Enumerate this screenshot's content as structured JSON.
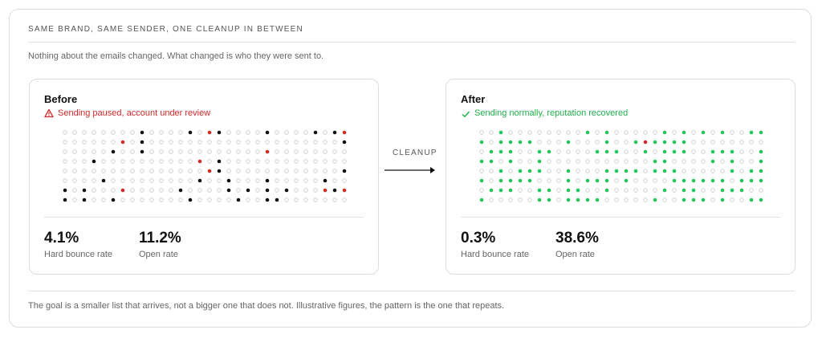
{
  "header": {
    "title": "SAME BRAND, SAME SENDER, ONE CLEANUP IN BETWEEN",
    "subtitle": "Nothing about the emails changed. What changed is who they were sent to."
  },
  "panels": [
    {
      "title": "Before",
      "status": "Sending paused, account under review",
      "metrics": [
        {
          "value": "4.1%",
          "label": "Hard bounce rate"
        },
        {
          "value": "11.2%",
          "label": "Open rate"
        }
      ]
    },
    {
      "title": "After",
      "status": "Sending normally, reputation recovered",
      "metrics": [
        {
          "value": "0.3%",
          "label": "Hard bounce rate"
        },
        {
          "value": "38.6%",
          "label": "Open rate"
        }
      ]
    }
  ],
  "transition_label": "CLEANUP",
  "footer": "The goal is a smaller list that arrives, not a bigger one that does not. Illustrative figures, the pattern is the one that repeats."
}
